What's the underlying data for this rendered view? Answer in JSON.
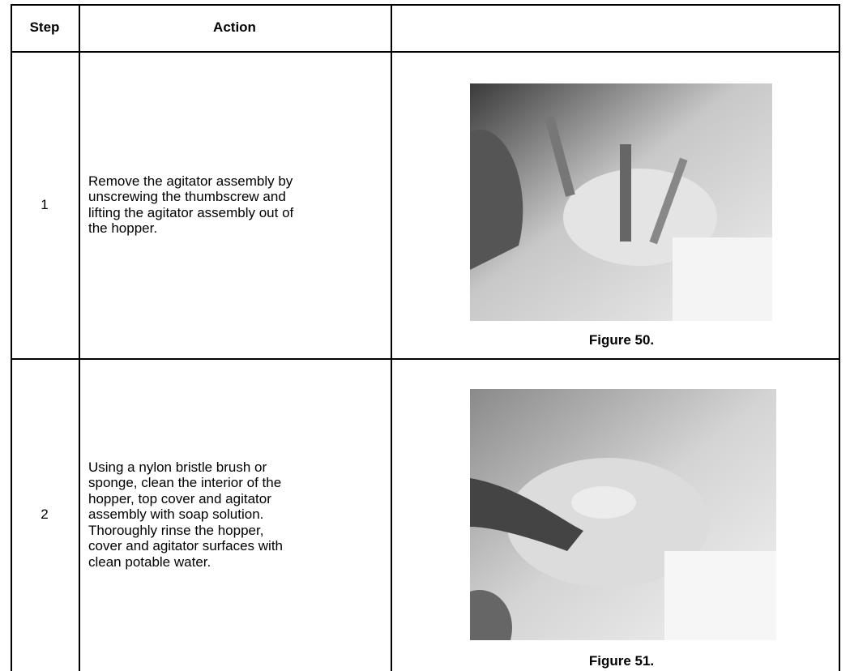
{
  "table": {
    "header": [
      "Step",
      "Action"
    ],
    "rows": [
      {
        "step": "1",
        "action": [
          "Remove the agitator assembly by",
          "unscrewing the thumbscrew and",
          "lifting the agitator assembly out of",
          "the hopper."
        ],
        "caption": "Figure 50."
      },
      {
        "step": "2",
        "action": [
          "Using a nylon bristle brush or",
          "sponge, clean the interior of the",
          "hopper, top cover and agitator",
          "assembly with soap solution.",
          "Thoroughly rinse the hopper,",
          "cover and agitator surfaces with",
          "clean potable water."
        ],
        "caption": "Figure 51."
      }
    ]
  }
}
